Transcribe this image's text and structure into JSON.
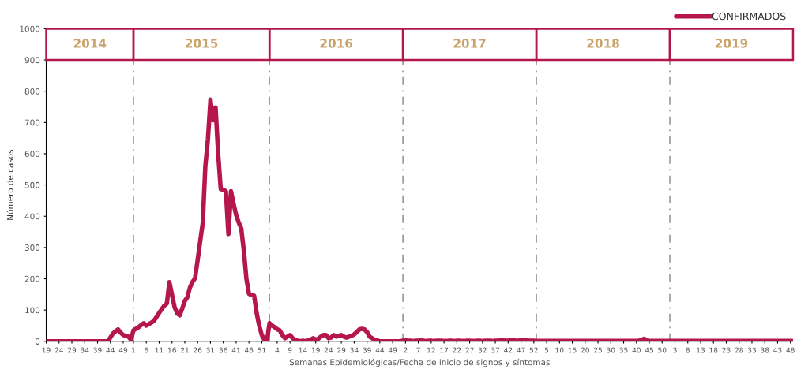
{
  "chart_data": {
    "type": "line",
    "xlabel": "Semanas Epidemiológicas/Fecha de inicio de signos y síntomas",
    "ylabel": "Número de casos",
    "categories": [
      "19",
      null,
      null,
      null,
      null,
      "24",
      null,
      null,
      null,
      null,
      "29",
      null,
      null,
      null,
      null,
      "34",
      null,
      null,
      null,
      null,
      "39",
      null,
      null,
      null,
      null,
      "44",
      null,
      null,
      null,
      null,
      "49",
      null,
      null,
      null,
      "1",
      null,
      null,
      null,
      null,
      "6",
      null,
      null,
      null,
      null,
      "11",
      null,
      null,
      null,
      null,
      "16",
      null,
      null,
      null,
      null,
      "21",
      null,
      null,
      null,
      null,
      "26",
      null,
      null,
      null,
      null,
      "31",
      null,
      null,
      null,
      null,
      "36",
      null,
      null,
      null,
      null,
      "41",
      null,
      null,
      null,
      null,
      "46",
      null,
      null,
      null,
      null,
      "51",
      null,
      null,
      null,
      null,
      null,
      "4",
      null,
      null,
      null,
      null,
      "9",
      null,
      null,
      null,
      null,
      "14",
      null,
      null,
      null,
      null,
      "19",
      null,
      null,
      null,
      null,
      "24",
      null,
      null,
      null,
      null,
      "29",
      null,
      null,
      null,
      null,
      "34",
      null,
      null,
      null,
      null,
      "39",
      null,
      null,
      null,
      null,
      "44",
      null,
      null,
      null,
      null,
      "49",
      null,
      null,
      null,
      null,
      "2",
      null,
      null,
      null,
      null,
      "7",
      null,
      null,
      null,
      null,
      "12",
      null,
      null,
      null,
      null,
      "17",
      null,
      null,
      null,
      null,
      "22",
      null,
      null,
      null,
      null,
      "27",
      null,
      null,
      null,
      null,
      "32",
      null,
      null,
      null,
      null,
      "37",
      null,
      null,
      null,
      null,
      "42",
      null,
      null,
      null,
      null,
      "47",
      null,
      null,
      null,
      null,
      "52",
      null,
      null,
      null,
      null,
      "5",
      null,
      null,
      null,
      null,
      "10",
      null,
      null,
      null,
      null,
      "15",
      null,
      null,
      null,
      null,
      "20",
      null,
      null,
      null,
      null,
      "25",
      null,
      null,
      null,
      null,
      "30",
      null,
      null,
      null,
      null,
      "35",
      null,
      null,
      null,
      null,
      "40",
      null,
      null,
      null,
      null,
      "45",
      null,
      null,
      null,
      null,
      "50",
      null,
      null,
      null,
      null,
      "3",
      null,
      null,
      null,
      null,
      "8",
      null,
      null,
      null,
      null,
      "13",
      null,
      null,
      null,
      null,
      "18",
      null,
      null,
      null,
      null,
      "23",
      null,
      null,
      null,
      null,
      "28",
      null,
      null,
      null,
      null,
      "33",
      null,
      null,
      null,
      null,
      "38",
      null,
      null,
      null,
      null,
      "43",
      null,
      null,
      null,
      null,
      "48",
      null
    ],
    "series": [
      {
        "name": "CONFIRMADOS",
        "color": "#b5174b",
        "values": [
          0,
          0,
          0,
          0,
          0,
          0,
          0,
          0,
          0,
          0,
          0,
          0,
          0,
          0,
          0,
          0,
          0,
          0,
          0,
          0,
          0,
          0,
          0,
          0,
          0,
          12,
          25,
          32,
          38,
          28,
          20,
          18,
          15,
          5,
          35,
          40,
          45,
          52,
          58,
          50,
          55,
          60,
          66,
          78,
          91,
          103,
          114,
          121,
          189,
          150,
          110,
          90,
          83,
          105,
          129,
          141,
          172,
          190,
          202,
          260,
          320,
          379,
          560,
          646,
          773,
          707,
          748,
          600,
          487,
          485,
          480,
          343,
          480,
          440,
          404,
          380,
          361,
          290,
          200,
          152,
          148,
          146,
          90,
          50,
          20,
          5,
          0,
          58,
          50,
          45,
          38,
          35,
          20,
          10,
          15,
          20,
          10,
          5,
          2,
          0,
          2,
          0,
          3,
          5,
          10,
          5,
          8,
          15,
          20,
          20,
          10,
          12,
          20,
          15,
          18,
          20,
          15,
          12,
          15,
          18,
          22,
          30,
          38,
          40,
          38,
          30,
          15,
          10,
          5,
          3,
          0,
          0,
          0,
          0,
          0,
          0,
          0,
          0,
          0,
          2,
          3,
          2,
          2,
          1,
          2,
          2,
          3,
          2,
          1,
          2,
          2,
          1,
          2,
          2,
          2,
          1,
          1,
          2,
          2,
          1,
          2,
          2,
          1,
          1,
          2,
          2,
          1,
          1,
          2,
          2,
          1,
          2,
          2,
          2,
          1,
          2,
          2,
          3,
          3,
          2,
          2,
          3,
          3,
          2,
          2,
          3,
          4,
          3,
          2,
          2,
          2,
          1,
          1,
          1,
          1,
          1,
          1,
          1,
          1,
          1,
          1,
          1,
          1,
          1,
          1,
          1,
          1,
          1,
          1,
          1,
          1,
          1,
          1,
          1,
          1,
          1,
          1,
          1,
          1,
          1,
          1,
          1,
          1,
          1,
          1,
          1,
          1,
          1,
          1,
          1,
          1,
          2,
          5,
          8,
          3,
          1,
          1,
          1,
          1,
          1,
          1,
          1,
          1,
          1,
          1,
          1,
          1,
          1,
          1,
          1,
          1,
          1,
          1,
          1,
          1,
          1,
          1,
          1,
          1,
          1,
          1,
          1,
          1,
          1,
          1,
          1,
          1,
          1,
          1,
          1,
          1,
          1,
          1,
          1,
          1,
          1,
          1,
          1,
          1,
          1,
          1,
          1,
          1,
          1,
          1,
          1,
          1,
          1,
          1,
          1,
          1,
          1
        ]
      }
    ],
    "ylim": [
      0,
      1000
    ],
    "yticks": [
      0,
      100,
      200,
      300,
      400,
      500,
      600,
      700,
      800,
      900,
      1000
    ],
    "annotations": [
      "2014",
      "2015",
      "2016",
      "2017",
      "2018",
      "2019"
    ],
    "grid": false,
    "legend": "top right",
    "line_style": "solid",
    "marker": "none"
  }
}
